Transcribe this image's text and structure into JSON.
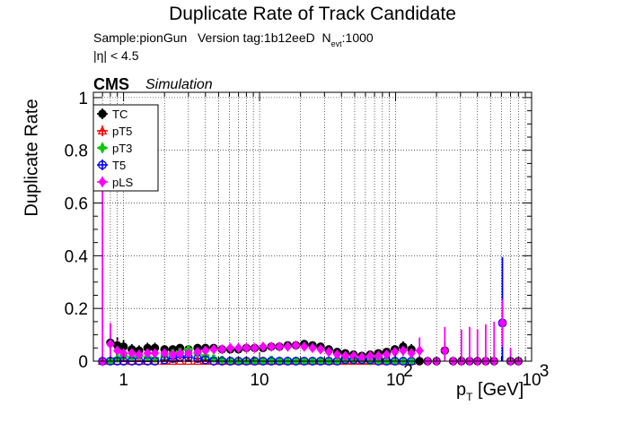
{
  "chart_data": {
    "type": "scatter",
    "title": "Duplicate Rate of Track Candidate",
    "info": {
      "sample": "Sample:pionGun",
      "version": "Version tag:1b12eeD",
      "nevt_label": "N",
      "nevt_sub": "evt",
      "nevt_value": ":1000",
      "eta_cut": "|η| < 4.5"
    },
    "cms_label": "CMS",
    "sim_label": "Simulation",
    "xlabel_main": "p",
    "xlabel_sub": "T",
    "xlabel_unit": " [GeV]",
    "ylabel": "Duplicate Rate",
    "xscale": "log",
    "xlim": [
      0.6,
      1000
    ],
    "ylim": [
      0,
      1.02
    ],
    "grid": true,
    "legend_position": "top-left",
    "xticks": [
      {
        "value": 1,
        "label": "1"
      },
      {
        "value": 10,
        "label": "10"
      },
      {
        "value": 100,
        "label": "10",
        "sup": "2"
      },
      {
        "value": 1000,
        "label": "10",
        "sup": "3"
      }
    ],
    "yticks": [
      {
        "value": 0,
        "label": "0"
      },
      {
        "value": 0.2,
        "label": "0.2"
      },
      {
        "value": 0.4,
        "label": "0.4"
      },
      {
        "value": 0.6,
        "label": "0.6"
      },
      {
        "value": 0.8,
        "label": "0.8"
      },
      {
        "value": 1.0,
        "label": "1"
      }
    ],
    "series": [
      {
        "name": "TC",
        "color": "#000000",
        "marker": "circle-filled",
        "points": [
          [
            0.7,
            0.0,
            0.0
          ],
          [
            0.8,
            0.07,
            0.03
          ],
          [
            0.9,
            0.06,
            0.03
          ],
          [
            1.0,
            0.055,
            0.025
          ],
          [
            1.15,
            0.045,
            0.02
          ],
          [
            1.3,
            0.04,
            0.02
          ],
          [
            1.5,
            0.05,
            0.02
          ],
          [
            1.7,
            0.05,
            0.02
          ],
          [
            2.0,
            0.045,
            0.015
          ],
          [
            2.3,
            0.045,
            0.015
          ],
          [
            2.6,
            0.05,
            0.015
          ],
          [
            3.0,
            0.045,
            0.015
          ],
          [
            3.5,
            0.05,
            0.015
          ],
          [
            4.0,
            0.05,
            0.012
          ],
          [
            4.6,
            0.05,
            0.012
          ],
          [
            5.3,
            0.045,
            0.012
          ],
          [
            6.1,
            0.045,
            0.012
          ],
          [
            7.0,
            0.045,
            0.012
          ],
          [
            8.0,
            0.05,
            0.012
          ],
          [
            9.2,
            0.05,
            0.012
          ],
          [
            10.6,
            0.05,
            0.012
          ],
          [
            12.2,
            0.055,
            0.012
          ],
          [
            14.0,
            0.055,
            0.012
          ],
          [
            16.1,
            0.06,
            0.012
          ],
          [
            18.5,
            0.06,
            0.012
          ],
          [
            21.3,
            0.065,
            0.012
          ],
          [
            24.5,
            0.06,
            0.012
          ],
          [
            28.1,
            0.055,
            0.012
          ],
          [
            32.3,
            0.045,
            0.012
          ],
          [
            37.2,
            0.035,
            0.01
          ],
          [
            42.7,
            0.03,
            0.01
          ],
          [
            49.1,
            0.025,
            0.01
          ],
          [
            56.5,
            0.02,
            0.01
          ],
          [
            65.0,
            0.025,
            0.01
          ],
          [
            74.7,
            0.03,
            0.01
          ],
          [
            85.9,
            0.035,
            0.012
          ],
          [
            98.8,
            0.045,
            0.015
          ],
          [
            113.6,
            0.055,
            0.02
          ],
          [
            130.7,
            0.045,
            0.02
          ],
          [
            150.0,
            0.0,
            0.0
          ],
          [
            172.0,
            0.0,
            0.0
          ],
          [
            200.0,
            0.0,
            0.0
          ],
          [
            230.0,
            0.04,
            0.03
          ],
          [
            265.0,
            0.0,
            0.0
          ],
          [
            305.0,
            0.0,
            0.0
          ],
          [
            350.0,
            0.0,
            0.0
          ],
          [
            400.0,
            0.0,
            0.0
          ],
          [
            460.0,
            0.0,
            0.0
          ],
          [
            530.0,
            0.0,
            0.0
          ],
          [
            610.0,
            0.145,
            0.05
          ],
          [
            700.0,
            0.0,
            0.0
          ],
          [
            800.0,
            0.0,
            0.0
          ]
        ]
      },
      {
        "name": "pT5",
        "color": "#ff0000",
        "marker": "triangle-open",
        "points": [
          [
            0.7,
            0.0,
            0.0
          ],
          [
            0.8,
            0.0,
            0.0
          ],
          [
            0.9,
            0.0,
            0.0
          ],
          [
            1.0,
            0.0,
            0.0
          ],
          [
            1.15,
            0.0,
            0.0
          ],
          [
            1.3,
            0.0,
            0.0
          ],
          [
            1.5,
            0.0,
            0.0
          ],
          [
            1.7,
            0.0,
            0.0
          ],
          [
            2.0,
            0.0,
            0.0
          ],
          [
            2.3,
            0.0,
            0.0
          ],
          [
            2.6,
            0.0,
            0.0
          ],
          [
            3.0,
            0.0,
            0.0
          ],
          [
            3.5,
            0.0,
            0.0
          ],
          [
            4.0,
            0.0,
            0.0
          ],
          [
            4.6,
            0.0,
            0.0
          ],
          [
            5.3,
            0.0,
            0.0
          ],
          [
            6.1,
            0.0,
            0.0
          ],
          [
            7.0,
            0.0,
            0.0
          ],
          [
            8.0,
            0.0,
            0.0
          ],
          [
            9.2,
            0.0,
            0.0
          ],
          [
            10.6,
            0.0,
            0.0
          ],
          [
            12.2,
            0.0,
            0.0
          ],
          [
            14.0,
            0.0,
            0.0
          ],
          [
            16.1,
            0.0,
            0.0
          ],
          [
            18.5,
            0.0,
            0.0
          ],
          [
            21.3,
            0.0,
            0.0
          ],
          [
            24.5,
            0.0,
            0.0
          ],
          [
            28.1,
            0.0,
            0.0
          ],
          [
            32.3,
            0.0,
            0.0
          ],
          [
            37.2,
            0.0,
            0.0
          ],
          [
            42.7,
            0.0,
            0.0
          ],
          [
            49.1,
            0.0,
            0.0
          ],
          [
            56.5,
            0.0,
            0.0
          ],
          [
            65.0,
            0.0,
            0.0
          ],
          [
            74.7,
            0.0,
            0.0
          ],
          [
            85.9,
            0.0,
            0.0
          ],
          [
            98.8,
            0.0,
            0.0
          ],
          [
            113.6,
            0.0,
            0.0
          ],
          [
            130.7,
            0.0,
            0.0
          ]
        ]
      },
      {
        "name": "pT3",
        "color": "#00cc00",
        "marker": "cross-filled",
        "points": [
          [
            0.7,
            0.0,
            0.0
          ],
          [
            0.8,
            0.0,
            0.0
          ],
          [
            0.9,
            0.01,
            0.01
          ],
          [
            1.0,
            0.02,
            0.015
          ],
          [
            1.15,
            0.015,
            0.01
          ],
          [
            1.3,
            0.02,
            0.01
          ],
          [
            1.5,
            0.015,
            0.01
          ],
          [
            1.7,
            0.01,
            0.01
          ],
          [
            2.0,
            0.02,
            0.01
          ],
          [
            2.3,
            0.03,
            0.012
          ],
          [
            2.6,
            0.035,
            0.012
          ],
          [
            3.0,
            0.045,
            0.015
          ],
          [
            3.5,
            0.03,
            0.012
          ],
          [
            4.0,
            0.02,
            0.01
          ],
          [
            4.6,
            0.01,
            0.008
          ],
          [
            5.3,
            0.005,
            0.005
          ],
          [
            6.1,
            0.0,
            0.0
          ],
          [
            7.0,
            0.0,
            0.0
          ],
          [
            8.0,
            0.0,
            0.0
          ],
          [
            9.2,
            0.0,
            0.0
          ],
          [
            10.6,
            0.0,
            0.0
          ],
          [
            12.2,
            0.005,
            0.005
          ],
          [
            14.0,
            0.0,
            0.0
          ],
          [
            16.1,
            0.0,
            0.0
          ],
          [
            18.5,
            0.0,
            0.0
          ],
          [
            21.3,
            0.0,
            0.0
          ],
          [
            24.5,
            0.0,
            0.0
          ],
          [
            28.1,
            0.0,
            0.0
          ],
          [
            32.3,
            0.0,
            0.0
          ],
          [
            37.2,
            0.0,
            0.0
          ],
          [
            42.7,
            0.005,
            0.005
          ],
          [
            49.1,
            0.005,
            0.005
          ],
          [
            56.5,
            0.005,
            0.005
          ],
          [
            65.0,
            0.0,
            0.0
          ],
          [
            74.7,
            0.0,
            0.0
          ],
          [
            85.9,
            0.0,
            0.0
          ],
          [
            98.8,
            0.0,
            0.0
          ],
          [
            113.6,
            0.0,
            0.0
          ],
          [
            130.7,
            0.0,
            0.0
          ]
        ]
      },
      {
        "name": "T5",
        "color": "#0000ff",
        "marker": "circle-open",
        "points": [
          [
            0.7,
            0.0,
            0.0
          ],
          [
            0.8,
            0.0,
            0.0
          ],
          [
            0.9,
            0.0,
            0.0
          ],
          [
            1.0,
            0.0,
            0.0
          ],
          [
            1.15,
            0.0,
            0.0
          ],
          [
            1.3,
            0.0,
            0.0
          ],
          [
            1.5,
            0.0,
            0.0
          ],
          [
            1.7,
            0.0,
            0.0
          ],
          [
            2.0,
            0.005,
            0.005
          ],
          [
            2.3,
            0.01,
            0.006
          ],
          [
            2.6,
            0.015,
            0.008
          ],
          [
            3.0,
            0.015,
            0.008
          ],
          [
            3.5,
            0.01,
            0.006
          ],
          [
            4.0,
            0.005,
            0.005
          ],
          [
            4.6,
            0.0,
            0.0
          ],
          [
            5.3,
            0.0,
            0.0
          ],
          [
            6.1,
            0.0,
            0.0
          ],
          [
            7.0,
            0.0,
            0.0
          ],
          [
            8.0,
            0.0,
            0.0
          ],
          [
            9.2,
            0.0,
            0.0
          ],
          [
            10.6,
            0.0,
            0.0
          ],
          [
            12.2,
            0.0,
            0.0
          ],
          [
            14.0,
            0.0,
            0.0
          ],
          [
            16.1,
            0.0,
            0.0
          ],
          [
            18.5,
            0.0,
            0.0
          ],
          [
            21.3,
            0.0,
            0.0
          ],
          [
            24.5,
            0.0,
            0.0
          ],
          [
            28.1,
            0.0,
            0.0
          ],
          [
            32.3,
            0.0,
            0.0
          ],
          [
            37.2,
            0.0,
            0.0
          ],
          [
            42.7,
            0.005,
            0.005
          ],
          [
            49.1,
            0.005,
            0.005
          ],
          [
            56.5,
            0.005,
            0.005
          ],
          [
            65.0,
            0.005,
            0.005
          ],
          [
            74.7,
            0.0,
            0.0
          ],
          [
            85.9,
            0.0,
            0.0
          ],
          [
            98.8,
            0.0,
            0.0
          ],
          [
            113.6,
            0.0,
            0.0
          ],
          [
            130.7,
            0.0,
            0.0
          ],
          [
            610.0,
            0.145,
            0.25
          ]
        ]
      },
      {
        "name": "pLS",
        "color": "#ff00ff",
        "marker": "diamond-filled",
        "points": [
          [
            0.7,
            0.0,
            0.67
          ],
          [
            0.8,
            0.065,
            0.08
          ],
          [
            0.9,
            0.04,
            0.04
          ],
          [
            1.0,
            0.03,
            0.03
          ],
          [
            1.15,
            0.03,
            0.02
          ],
          [
            1.3,
            0.025,
            0.02
          ],
          [
            1.5,
            0.03,
            0.02
          ],
          [
            1.7,
            0.03,
            0.018
          ],
          [
            2.0,
            0.03,
            0.015
          ],
          [
            2.3,
            0.025,
            0.012
          ],
          [
            2.6,
            0.03,
            0.012
          ],
          [
            3.0,
            0.03,
            0.012
          ],
          [
            3.5,
            0.035,
            0.012
          ],
          [
            4.0,
            0.04,
            0.012
          ],
          [
            4.6,
            0.045,
            0.012
          ],
          [
            5.3,
            0.045,
            0.012
          ],
          [
            6.1,
            0.05,
            0.012
          ],
          [
            7.0,
            0.05,
            0.012
          ],
          [
            8.0,
            0.05,
            0.012
          ],
          [
            9.2,
            0.05,
            0.012
          ],
          [
            10.6,
            0.055,
            0.012
          ],
          [
            12.2,
            0.055,
            0.012
          ],
          [
            14.0,
            0.055,
            0.012
          ],
          [
            16.1,
            0.055,
            0.012
          ],
          [
            18.5,
            0.06,
            0.012
          ],
          [
            21.3,
            0.055,
            0.012
          ],
          [
            24.5,
            0.05,
            0.012
          ],
          [
            28.1,
            0.045,
            0.012
          ],
          [
            32.3,
            0.035,
            0.012
          ],
          [
            37.2,
            0.025,
            0.01
          ],
          [
            42.7,
            0.02,
            0.01
          ],
          [
            49.1,
            0.02,
            0.01
          ],
          [
            56.5,
            0.015,
            0.01
          ],
          [
            65.0,
            0.02,
            0.01
          ],
          [
            74.7,
            0.02,
            0.01
          ],
          [
            85.9,
            0.025,
            0.012
          ],
          [
            98.8,
            0.035,
            0.015
          ],
          [
            113.6,
            0.04,
            0.02
          ],
          [
            130.7,
            0.03,
            0.03
          ],
          [
            150.0,
            0.04,
            0.05
          ],
          [
            172.0,
            0.0,
            0.0
          ],
          [
            200.0,
            0.0,
            0.0
          ],
          [
            230.0,
            0.04,
            0.09
          ],
          [
            265.0,
            0.0,
            0.0
          ],
          [
            305.0,
            0.0,
            0.12
          ],
          [
            350.0,
            0.0,
            0.13
          ],
          [
            400.0,
            0.0,
            0.12
          ],
          [
            460.0,
            0.0,
            0.14
          ],
          [
            530.0,
            0.0,
            0.15
          ],
          [
            610.0,
            0.145,
            0.09
          ],
          [
            700.0,
            0.0,
            0.05
          ],
          [
            800.0,
            0.0,
            0.0
          ]
        ]
      }
    ]
  }
}
